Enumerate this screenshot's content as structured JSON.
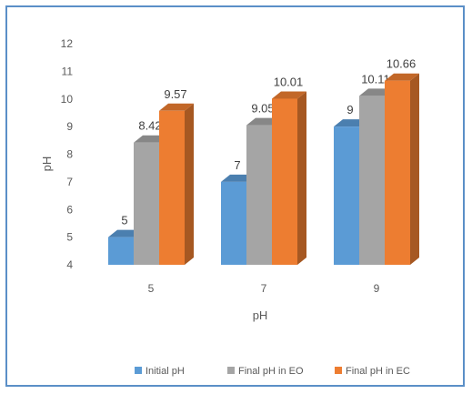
{
  "chart_data": {
    "type": "bar",
    "style": "3d-clustered-column",
    "title": "",
    "xlabel": "pH",
    "ylabel": "pH",
    "ylim": [
      4,
      12
    ],
    "yticks": [
      "4",
      "5",
      "6",
      "7",
      "8",
      "9",
      "10",
      "11",
      "12"
    ],
    "categories": [
      "5",
      "7",
      "9"
    ],
    "series": [
      {
        "name": "Initial pH",
        "values": [
          5,
          7,
          9
        ],
        "labels": [
          "5",
          "7",
          "9"
        ],
        "color": "#5b9bd5"
      },
      {
        "name": "Final pH in EO",
        "values": [
          8.42,
          9.05,
          10.11
        ],
        "labels": [
          "8.42",
          "9.05",
          "10.11"
        ],
        "color": "#a5a5a5"
      },
      {
        "name": "Final pH in EC",
        "values": [
          9.57,
          10.01,
          10.66
        ],
        "labels": [
          "9.57",
          "10.01",
          "10.66"
        ],
        "color": "#ed7d31"
      }
    ],
    "grid": false,
    "legend_position": "bottom"
  }
}
